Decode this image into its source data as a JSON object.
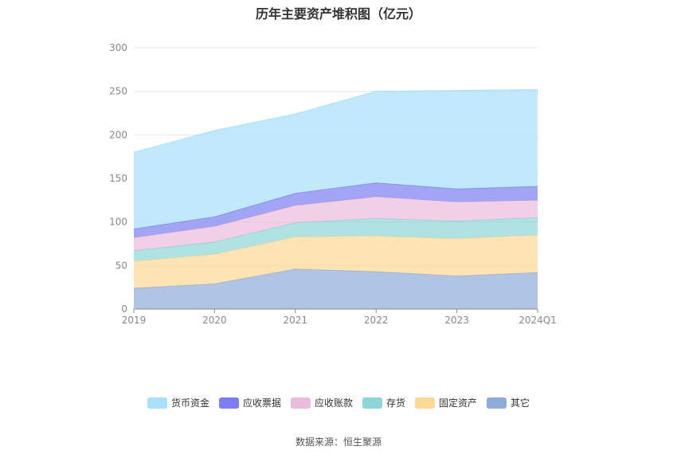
{
  "chart_data": {
    "type": "area",
    "title": "历年主要资产堆积图（亿元）",
    "source": "数据来源：恒生聚源",
    "categories": [
      "2019",
      "2020",
      "2021",
      "2022",
      "2023",
      "2024Q1"
    ],
    "ylim": [
      0,
      300
    ],
    "yticks": [
      "0",
      "50",
      "100",
      "150",
      "200",
      "250",
      "300"
    ],
    "grid": true,
    "legend_position": "bottom",
    "stack_order": [
      "其它",
      "固定资产",
      "存货",
      "应收账款",
      "应收票据",
      "货币资金"
    ],
    "series": [
      {
        "name": "其它",
        "color": "#8fabd9",
        "values": [
          24,
          29,
          46,
          43,
          38,
          42
        ]
      },
      {
        "name": "固定资产",
        "color": "#fdd996",
        "values": [
          31,
          34,
          37,
          41,
          43,
          43
        ]
      },
      {
        "name": "存货",
        "color": "#8dd5d6",
        "values": [
          12,
          14,
          16,
          20,
          20,
          20
        ]
      },
      {
        "name": "应收账款",
        "color": "#e9bbdd",
        "values": [
          15,
          18,
          20,
          25,
          22,
          20
        ]
      },
      {
        "name": "应收票据",
        "color": "#7b7df0",
        "values": [
          10,
          11,
          14,
          16,
          15,
          16
        ]
      },
      {
        "name": "货币资金",
        "color": "#a8dff9",
        "values": [
          88,
          99,
          91,
          105,
          113,
          111
        ]
      }
    ],
    "legend": [
      "货币资金",
      "应收票据",
      "应收账款",
      "存货",
      "固定资产",
      "其它"
    ]
  }
}
